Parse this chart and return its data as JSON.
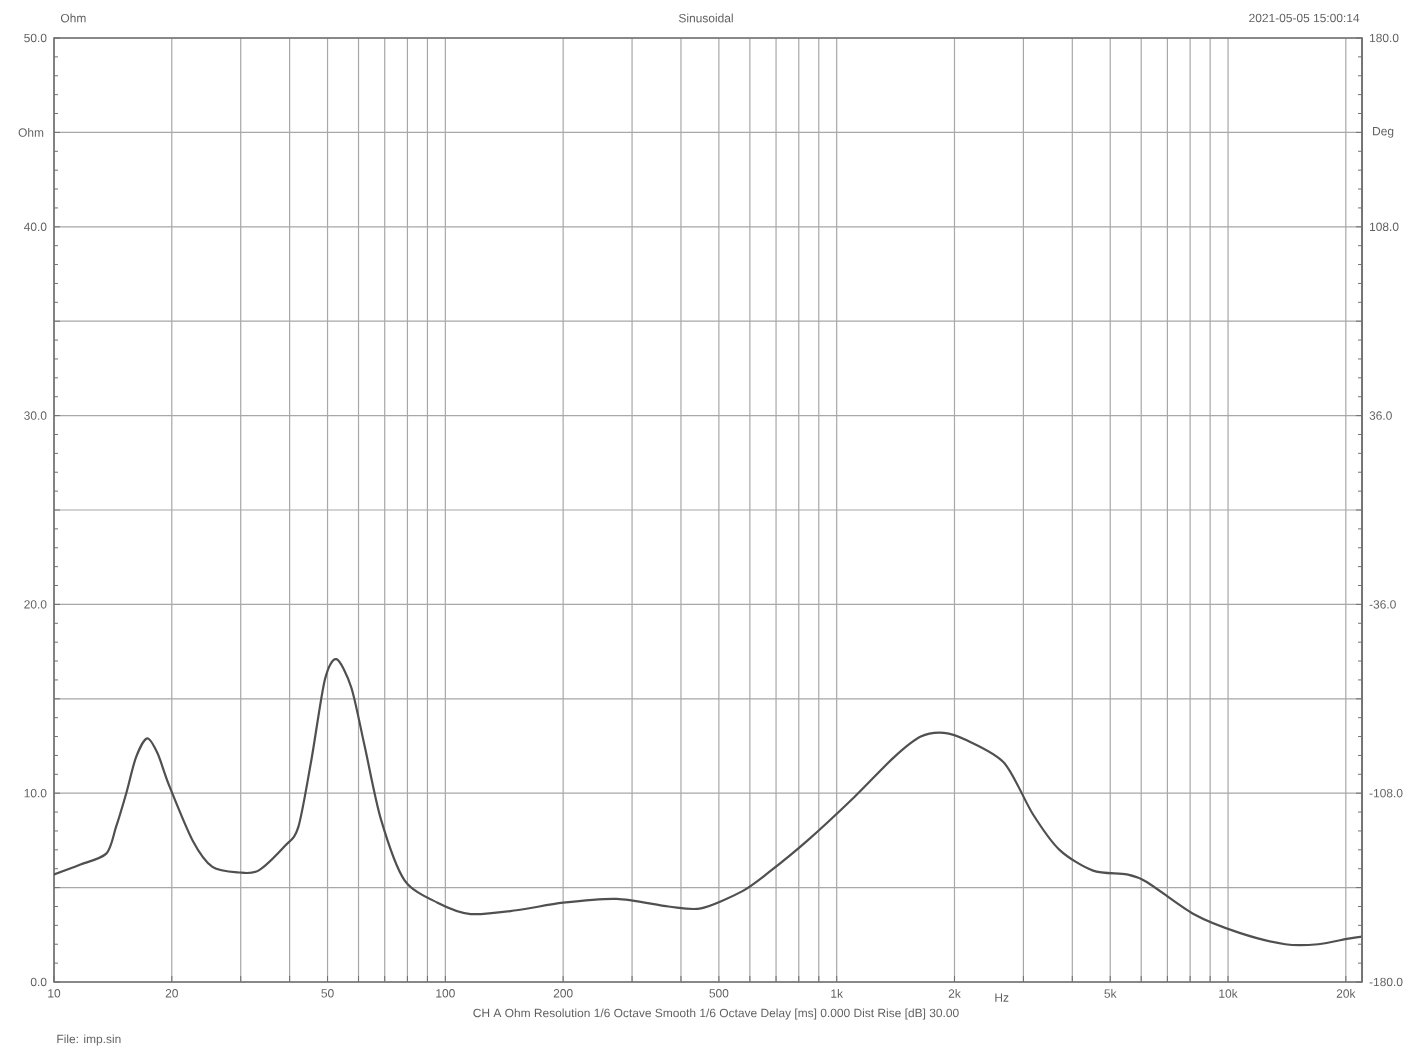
{
  "chart_data": {
    "type": "line",
    "title": "Sinusoidal",
    "xlabel": "Hz",
    "ylabel": "Ohm",
    "y2label": "Deg",
    "annotations": [
      "Ohm",
      "2021-05-05 15:00:14",
      "CH A Ohm Resolution 1/6 Octave Smooth 1/6 Octave Delay [ms] 0.000 Dist Rise [dB] 30.00",
      "File: imp.sin"
    ],
    "log": "x",
    "grid": true,
    "xlim": [
      10,
      22000
    ],
    "ylim": [
      0,
      50
    ],
    "y2lim": [
      -180,
      180
    ],
    "xticks": [
      10,
      20,
      {
        "value": 30,
        "label": null
      },
      {
        "value": 40,
        "label": null
      },
      50,
      {
        "value": 60,
        "label": null
      },
      {
        "value": 70,
        "label": null
      },
      {
        "value": 80,
        "label": null
      },
      {
        "value": 90,
        "label": null
      },
      100,
      200,
      {
        "value": 300,
        "label": null
      },
      {
        "value": 400,
        "label": null
      },
      500,
      {
        "value": 600,
        "label": null
      },
      {
        "value": 700,
        "label": null
      },
      {
        "value": 800,
        "label": null
      },
      {
        "value": 900,
        "label": null
      },
      {
        "value": 1000,
        "label": "1k"
      },
      {
        "value": 2000,
        "label": "2k"
      },
      {
        "value": 3000,
        "label": null
      },
      {
        "value": 4000,
        "label": null
      },
      {
        "value": 5000,
        "label": "5k"
      },
      {
        "value": 6000,
        "label": null
      },
      {
        "value": 7000,
        "label": null
      },
      {
        "value": 8000,
        "label": null
      },
      {
        "value": 9000,
        "label": null
      },
      {
        "value": 10000,
        "label": "10k"
      },
      {
        "value": 20000,
        "label": "20k"
      }
    ],
    "yticks": [
      {
        "value": 0,
        "label": "0.0"
      },
      {
        "value": 5,
        "label": null
      },
      {
        "value": 10,
        "label": "10.0"
      },
      {
        "value": 15,
        "label": null
      },
      {
        "value": 20,
        "label": "20.0"
      },
      {
        "value": 25,
        "label": null
      },
      {
        "value": 30,
        "label": "30.0"
      },
      {
        "value": 35,
        "label": null
      },
      {
        "value": 40,
        "label": "40.0"
      },
      {
        "value": 45,
        "label": null
      },
      {
        "value": 50,
        "label": "50.0"
      }
    ],
    "y2ticks": [
      {
        "value": -180,
        "label": "-180.0"
      },
      {
        "value": -144,
        "label": null
      },
      {
        "value": -108,
        "label": "-108.0"
      },
      {
        "value": -72,
        "label": null
      },
      {
        "value": -36,
        "label": "-36.0"
      },
      {
        "value": 0,
        "label": null
      },
      {
        "value": 36,
        "label": "36.0"
      },
      {
        "value": 72,
        "label": null
      },
      {
        "value": 108,
        "label": "108.0"
      },
      {
        "value": 144,
        "label": null
      },
      {
        "value": 180,
        "label": "180.0"
      }
    ],
    "series": [
      {
        "color": "#505050",
        "x": [
          10,
          11.6,
          13.6,
          14.4,
          15.3,
          16.2,
          17.3,
          18.4,
          19.7,
          22.6,
          25.4,
          29.7,
          33.3,
          38.9,
          42.1,
          45.5,
          49.2,
          52.7,
          57.5,
          62.2,
          68.5,
          78.6,
          95.5,
          116,
          152,
          200,
          274,
          372,
          450,
          573,
          670,
          843,
          1110,
          1400,
          1640,
          1880,
          2150,
          2680,
          3170,
          3710,
          4520,
          5510,
          6200,
          8160,
          10700,
          14000,
          17000,
          20300,
          22000
        ],
        "values": [
          5.7,
          6.2,
          6.8,
          8.2,
          10.0,
          11.9,
          12.9,
          12.1,
          10.4,
          7.5,
          6.1,
          5.8,
          5.9,
          7.2,
          8.2,
          11.8,
          16.0,
          17.1,
          15.6,
          12.5,
          8.6,
          5.4,
          4.2,
          3.6,
          3.8,
          4.2,
          4.4,
          4.0,
          3.9,
          4.8,
          5.8,
          7.5,
          9.8,
          11.9,
          13.0,
          13.2,
          12.8,
          11.6,
          8.9,
          7.0,
          5.9,
          5.7,
          5.3,
          3.6,
          2.6,
          2.0,
          2.0,
          2.3,
          2.4
        ]
      }
    ]
  }
}
